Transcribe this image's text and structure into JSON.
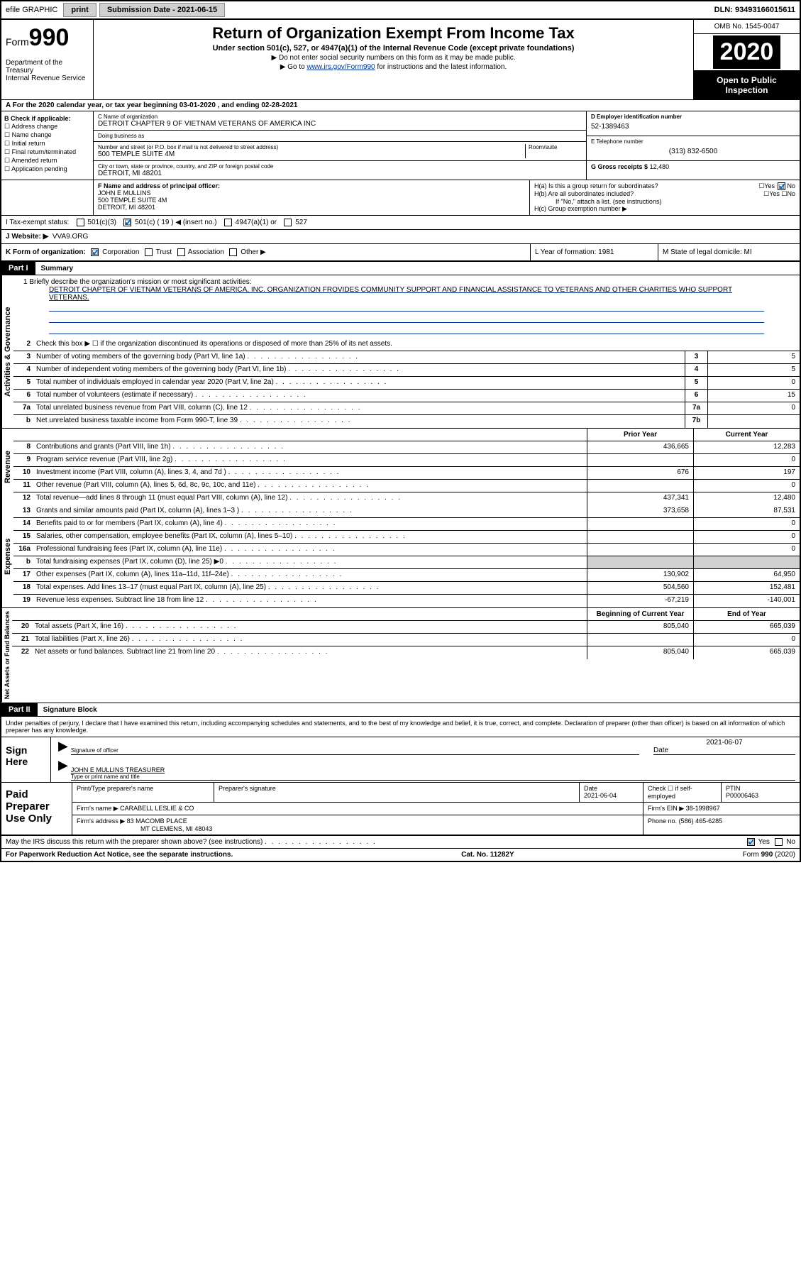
{
  "topbar": {
    "efile": "efile GRAPHIC",
    "print": "print",
    "submission_label": "Submission Date - ",
    "submission_date": "2021-06-15",
    "dln": "DLN: 93493166015611"
  },
  "header": {
    "form_label": "Form",
    "form_num": "990",
    "dept": "Department of the Treasury",
    "irs": "Internal Revenue Service",
    "title": "Return of Organization Exempt From Income Tax",
    "sub1": "Under section 501(c), 527, or 4947(a)(1) of the Internal Revenue Code (except private foundations)",
    "sub2": "▶ Do not enter social security numbers on this form as it may be made public.",
    "sub3_pre": "▶ Go to ",
    "sub3_link": "www.irs.gov/Form990",
    "sub3_post": " for instructions and the latest information.",
    "omb": "OMB No. 1545-0047",
    "year": "2020",
    "open": "Open to Public Inspection"
  },
  "row_a": "A For the 2020 calendar year, or tax year beginning 03-01-2020   , and ending 02-28-2021",
  "col_b": {
    "header": "B Check if applicable:",
    "items": [
      "Address change",
      "Name change",
      "Initial return",
      "Final return/terminated",
      "Amended return",
      "Application pending"
    ]
  },
  "box_c": {
    "label_name": "C Name of organization",
    "name": "DETROIT CHAPTER 9 OF VIETNAM VETERANS OF AMERICA INC",
    "label_dba": "Doing business as",
    "dba": "",
    "label_addr": "Number and street (or P.O. box if mail is not delivered to street address)",
    "label_room": "Room/suite",
    "addr": "500 TEMPLE SUITE 4M",
    "label_city": "City or town, state or province, country, and ZIP or foreign postal code",
    "city": "DETROIT, MI  48201"
  },
  "box_d": {
    "label": "D Employer identification number",
    "val": "52-1389463"
  },
  "box_e": {
    "label": "E Telephone number",
    "val": "(313) 832-6500"
  },
  "box_g": {
    "label": "G Gross receipts $",
    "val": "12,480"
  },
  "box_f": {
    "label": "F  Name and address of principal officer:",
    "name": "JOHN E MULLINS",
    "addr1": "500 TEMPLE SUITE 4M",
    "addr2": "DETROIT, MI  48201"
  },
  "box_h": {
    "ha": "H(a)  Is this a group return for subordinates?",
    "ha_yes": "Yes",
    "ha_no": "No",
    "hb": "H(b)  Are all subordinates included?",
    "hb_yes": "Yes",
    "hb_no": "No",
    "hb_note": "If \"No,\" attach a list. (see instructions)",
    "hc": "H(c)  Group exemption number ▶"
  },
  "tax_status": {
    "i": "I   Tax-exempt status:",
    "c3": "501(c)(3)",
    "c": "501(c) ( 19 ) ◀ (insert no.)",
    "a1": "4947(a)(1) or",
    "s527": "527"
  },
  "website": {
    "j": "J   Website: ▶",
    "val": "VVA9.ORG"
  },
  "row_k": {
    "k": "K Form of organization:",
    "corp": "Corporation",
    "trust": "Trust",
    "assoc": "Association",
    "other": "Other ▶",
    "l": "L Year of formation: 1981",
    "m": "M State of legal domicile: MI"
  },
  "part1": {
    "num": "Part I",
    "title": "Summary"
  },
  "mission": {
    "label": "1  Briefly describe the organization's mission or most significant activities:",
    "text": "DETROIT CHAPTER OF VIETNAM VETERANS OF AMERICA, INC. ORGANIZATION FROVIDES COMMUNITY SUPPORT AND FINANCIAL ASSISTANCE TO VETERANS AND OTHER CHARITIES WHO SUPPORT VETERANS."
  },
  "governance": {
    "side": "Activities & Governance",
    "rows": [
      {
        "n": "2",
        "desc": "Check this box ▶ ☐  if the organization discontinued its operations or disposed of more than 25% of its net assets."
      },
      {
        "n": "3",
        "desc": "Number of voting members of the governing body (Part VI, line 1a)",
        "box": "3",
        "val": "5"
      },
      {
        "n": "4",
        "desc": "Number of independent voting members of the governing body (Part VI, line 1b)",
        "box": "4",
        "val": "5"
      },
      {
        "n": "5",
        "desc": "Total number of individuals employed in calendar year 2020 (Part V, line 2a)",
        "box": "5",
        "val": "0"
      },
      {
        "n": "6",
        "desc": "Total number of volunteers (estimate if necessary)",
        "box": "6",
        "val": "15"
      },
      {
        "n": "7a",
        "desc": "Total unrelated business revenue from Part VIII, column (C), line 12",
        "box": "7a",
        "val": "0"
      },
      {
        "n": "b",
        "desc": "Net unrelated business taxable income from Form 990-T, line 39",
        "box": "7b",
        "val": ""
      }
    ]
  },
  "colheaders": {
    "prior": "Prior Year",
    "current": "Current Year"
  },
  "revenue": {
    "side": "Revenue",
    "rows": [
      {
        "n": "8",
        "desc": "Contributions and grants (Part VIII, line 1h)",
        "py": "436,665",
        "cy": "12,283"
      },
      {
        "n": "9",
        "desc": "Program service revenue (Part VIII, line 2g)",
        "py": "",
        "cy": "0"
      },
      {
        "n": "10",
        "desc": "Investment income (Part VIII, column (A), lines 3, 4, and 7d )",
        "py": "676",
        "cy": "197"
      },
      {
        "n": "11",
        "desc": "Other revenue (Part VIII, column (A), lines 5, 6d, 8c, 9c, 10c, and 11e)",
        "py": "",
        "cy": "0"
      },
      {
        "n": "12",
        "desc": "Total revenue—add lines 8 through 11 (must equal Part VIII, column (A), line 12)",
        "py": "437,341",
        "cy": "12,480"
      }
    ]
  },
  "expenses": {
    "side": "Expenses",
    "rows": [
      {
        "n": "13",
        "desc": "Grants and similar amounts paid (Part IX, column (A), lines 1–3 )",
        "py": "373,658",
        "cy": "87,531"
      },
      {
        "n": "14",
        "desc": "Benefits paid to or for members (Part IX, column (A), line 4)",
        "py": "",
        "cy": "0"
      },
      {
        "n": "15",
        "desc": "Salaries, other compensation, employee benefits (Part IX, column (A), lines 5–10)",
        "py": "",
        "cy": "0"
      },
      {
        "n": "16a",
        "desc": "Professional fundraising fees (Part IX, column (A), line 11e)",
        "py": "",
        "cy": "0"
      },
      {
        "n": "b",
        "desc": "Total fundraising expenses (Part IX, column (D), line 25) ▶0",
        "py": "shaded",
        "cy": "shaded"
      },
      {
        "n": "17",
        "desc": "Other expenses (Part IX, column (A), lines 11a–11d, 11f–24e)",
        "py": "130,902",
        "cy": "64,950"
      },
      {
        "n": "18",
        "desc": "Total expenses. Add lines 13–17 (must equal Part IX, column (A), line 25)",
        "py": "504,560",
        "cy": "152,481"
      },
      {
        "n": "19",
        "desc": "Revenue less expenses. Subtract line 18 from line 12",
        "py": "-67,219",
        "cy": "-140,001"
      }
    ]
  },
  "colheaders2": {
    "begin": "Beginning of Current Year",
    "end": "End of Year"
  },
  "netassets": {
    "side": "Net Assets or Fund Balances",
    "rows": [
      {
        "n": "20",
        "desc": "Total assets (Part X, line 16)",
        "py": "805,040",
        "cy": "665,039"
      },
      {
        "n": "21",
        "desc": "Total liabilities (Part X, line 26)",
        "py": "",
        "cy": "0"
      },
      {
        "n": "22",
        "desc": "Net assets or fund balances. Subtract line 21 from line 20",
        "py": "805,040",
        "cy": "665,039"
      }
    ]
  },
  "part2": {
    "num": "Part II",
    "title": "Signature Block"
  },
  "sig": {
    "decl": "Under penalties of perjury, I declare that I have examined this return, including accompanying schedules and statements, and to the best of my knowledge and belief, it is true, correct, and complete. Declaration of preparer (other than officer) is based on all information of which preparer has any knowledge.",
    "sign_here": "Sign Here",
    "sig_officer": "Signature of officer",
    "date_label": "Date",
    "date": "2021-06-07",
    "name": "JOHN E MULLINS  TREASURER",
    "name_label": "Type or print name and title"
  },
  "paid": {
    "label": "Paid Preparer Use Only",
    "h_name": "Print/Type preparer's name",
    "h_sig": "Preparer's signature",
    "h_date": "Date",
    "date": "2021-06-04",
    "h_check": "Check ☐ if self-employed",
    "h_ptin": "PTIN",
    "ptin": "P00006463",
    "firm_label": "Firm's name      ▶",
    "firm": "CARABELL LESLIE & CO",
    "ein_label": "Firm's EIN ▶",
    "ein": "38-1998967",
    "addr_label": "Firm's address ▶",
    "addr1": "83 MACOMB PLACE",
    "addr2": "MT CLEMENS, MI  48043",
    "phone_label": "Phone no.",
    "phone": "(586) 465-6285"
  },
  "footer": {
    "discuss": "May the IRS discuss this return with the preparer shown above? (see instructions)",
    "yes": "Yes",
    "no": "No",
    "pra": "For Paperwork Reduction Act Notice, see the separate instructions.",
    "cat": "Cat. No. 11282Y",
    "form": "Form 990 (2020)"
  },
  "colors": {
    "link": "#003399",
    "shade": "#d0d0d0",
    "check": "#0066cc"
  }
}
